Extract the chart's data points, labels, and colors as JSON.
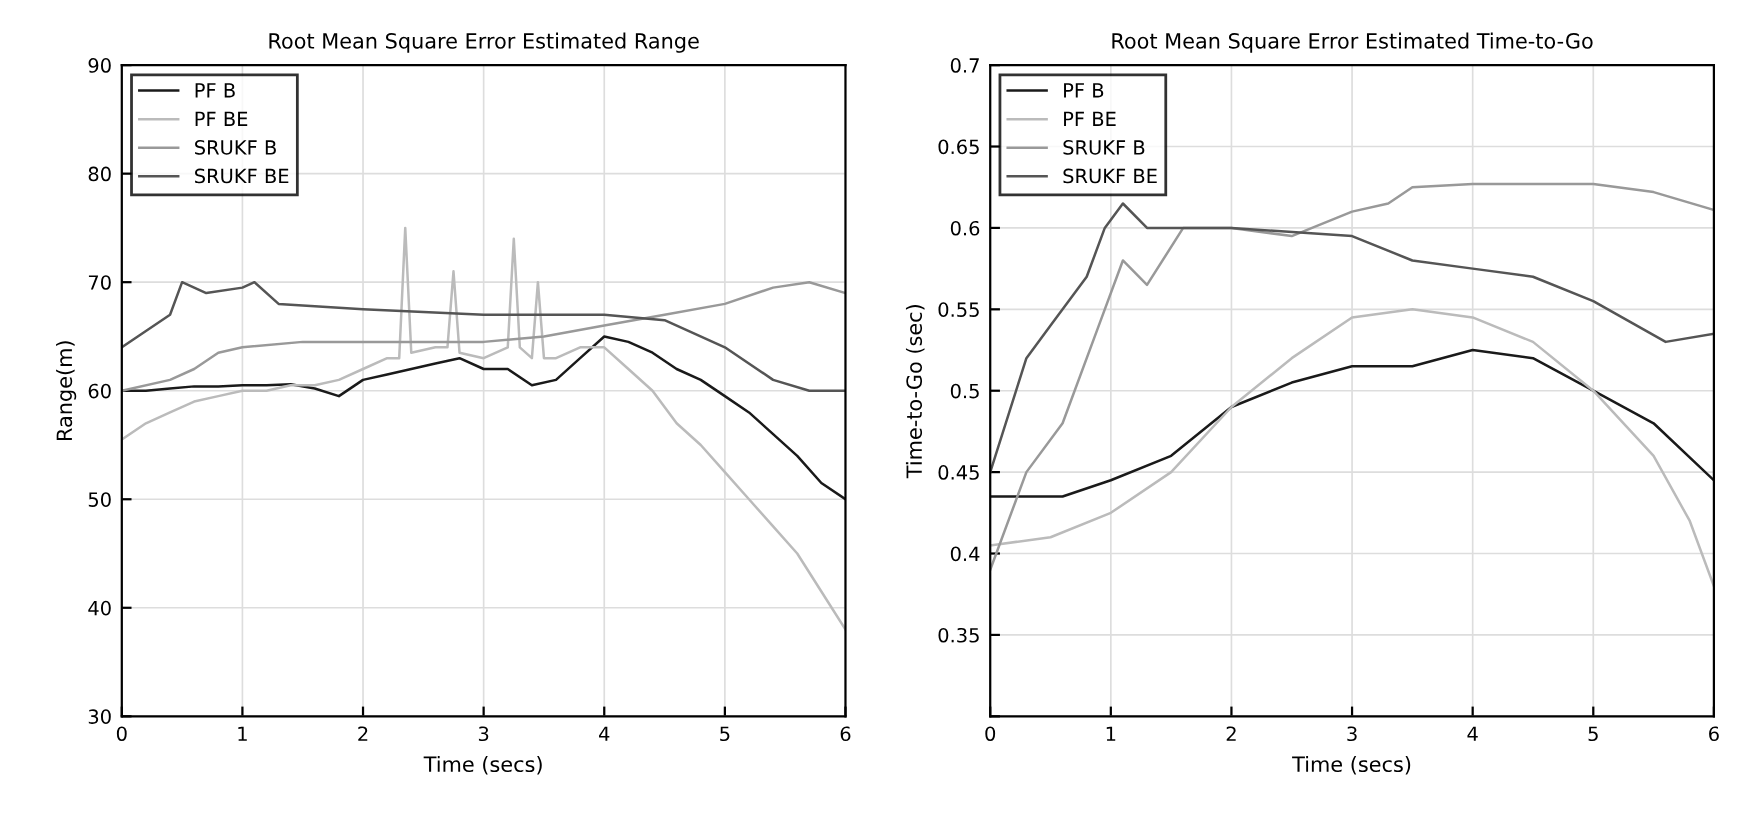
{
  "chart_data": [
    {
      "type": "line",
      "title": "Root Mean Square Error Estimated Range",
      "xlabel": "Time (secs)",
      "ylabel": "Range(m)",
      "xlim": [
        0,
        6
      ],
      "xticks": [
        0,
        1,
        2,
        3,
        4,
        5,
        6
      ],
      "ylim": [
        30,
        90
      ],
      "yticks": [
        30,
        40,
        50,
        60,
        70,
        80,
        90
      ],
      "grid": true,
      "legend": "top left",
      "series": [
        {
          "name": "PF B",
          "color": "#1a1a1a",
          "x": [
            0,
            0.2,
            0.4,
            0.6,
            0.8,
            1.0,
            1.2,
            1.4,
            1.6,
            1.8,
            2.0,
            2.2,
            2.4,
            2.6,
            2.8,
            3.0,
            3.2,
            3.4,
            3.6,
            3.8,
            4.0,
            4.2,
            4.4,
            4.6,
            4.8,
            5.0,
            5.2,
            5.4,
            5.6,
            5.8,
            6.0
          ],
          "values": [
            60,
            60,
            60.2,
            60.4,
            60.4,
            60.5,
            60.5,
            60.6,
            60.2,
            59.5,
            61,
            61.5,
            62,
            62.5,
            63,
            62,
            62,
            60.5,
            61,
            63,
            65,
            64.5,
            63.5,
            62,
            61,
            59.5,
            58,
            56,
            54,
            51.5,
            50
          ]
        },
        {
          "name": "PF BE",
          "color": "#bbbbbb",
          "x": [
            0,
            0.2,
            0.4,
            0.6,
            0.8,
            1.0,
            1.2,
            1.4,
            1.6,
            1.8,
            2.0,
            2.2,
            2.3,
            2.35,
            2.4,
            2.6,
            2.7,
            2.75,
            2.8,
            3.0,
            3.2,
            3.25,
            3.3,
            3.4,
            3.45,
            3.5,
            3.6,
            3.8,
            4.0,
            4.2,
            4.4,
            4.6,
            4.8,
            5.0,
            5.2,
            5.4,
            5.6,
            5.8,
            6.0
          ],
          "values": [
            55.5,
            57,
            58,
            59,
            59.5,
            60,
            60,
            60.5,
            60.5,
            61,
            62,
            63,
            63,
            75,
            63.5,
            64,
            64,
            71,
            63.5,
            63,
            64,
            74,
            64,
            63,
            70,
            63,
            63,
            64,
            64,
            62,
            60,
            57,
            55,
            52.5,
            50,
            47.5,
            45,
            41.5,
            38
          ]
        },
        {
          "name": "SRUKF B",
          "color": "#999999",
          "x": [
            0,
            0.4,
            0.6,
            0.8,
            1.0,
            1.5,
            2.0,
            3.0,
            3.5,
            4.0,
            4.5,
            5.0,
            5.4,
            5.7,
            6.0
          ],
          "values": [
            60,
            61,
            62,
            63.5,
            64,
            64.5,
            64.5,
            64.5,
            65,
            66,
            67,
            68,
            69.5,
            70,
            69
          ]
        },
        {
          "name": "SRUKF BE",
          "color": "#555555",
          "x": [
            0,
            0.2,
            0.4,
            0.5,
            0.7,
            1.0,
            1.1,
            1.3,
            2.0,
            3.0,
            4.0,
            4.5,
            5.0,
            5.4,
            5.7,
            6.0
          ],
          "values": [
            64,
            65.5,
            67,
            70,
            69,
            69.5,
            70,
            68,
            67.5,
            67,
            67,
            66.5,
            64,
            61,
            60,
            60
          ]
        }
      ]
    },
    {
      "type": "line",
      "title": "Root Mean Square Error Estimated Time-to-Go",
      "xlabel": "Time (secs)",
      "ylabel": "Time-to-Go (sec)",
      "xlim": [
        0,
        6
      ],
      "xticks": [
        0,
        1,
        2,
        3,
        4,
        5,
        6
      ],
      "ylim": [
        0.3,
        0.7
      ],
      "yticks": [
        {
          "value": 0.3,
          "label": null
        },
        0.35,
        0.4,
        0.45,
        0.5,
        0.55,
        0.6,
        0.65,
        0.7
      ],
      "grid": true,
      "legend": "top left",
      "series": [
        {
          "name": "PF B",
          "color": "#1a1a1a",
          "x": [
            0,
            0.3,
            0.6,
            1.0,
            1.5,
            2.0,
            2.5,
            3.0,
            3.5,
            4.0,
            4.5,
            5.0,
            5.5,
            6.0
          ],
          "values": [
            0.435,
            0.435,
            0.435,
            0.445,
            0.46,
            0.49,
            0.505,
            0.515,
            0.515,
            0.525,
            0.52,
            0.5,
            0.48,
            0.445
          ]
        },
        {
          "name": "PF BE",
          "color": "#bbbbbb",
          "x": [
            0,
            0.5,
            1.0,
            1.5,
            2.0,
            2.5,
            3.0,
            3.5,
            4.0,
            4.5,
            5.0,
            5.5,
            5.8,
            6.0
          ],
          "values": [
            0.405,
            0.41,
            0.425,
            0.45,
            0.49,
            0.52,
            0.545,
            0.55,
            0.545,
            0.53,
            0.5,
            0.46,
            0.42,
            0.38
          ]
        },
        {
          "name": "SRUKF B",
          "color": "#999999",
          "x": [
            0,
            0.3,
            0.6,
            0.9,
            1.1,
            1.3,
            1.6,
            2.0,
            2.5,
            3.0,
            3.3,
            3.5,
            4.0,
            5.0,
            5.5,
            6.0
          ],
          "values": [
            0.39,
            0.45,
            0.48,
            0.54,
            0.58,
            0.565,
            0.6,
            0.6,
            0.595,
            0.61,
            0.615,
            0.625,
            0.627,
            0.627,
            0.622,
            0.611
          ]
        },
        {
          "name": "SRUKF BE",
          "color": "#555555",
          "x": [
            0,
            0.3,
            0.5,
            0.8,
            0.95,
            1.1,
            1.3,
            2.0,
            3.0,
            3.5,
            4.0,
            4.5,
            5.0,
            5.6,
            6.0
          ],
          "values": [
            0.45,
            0.52,
            0.54,
            0.57,
            0.6,
            0.615,
            0.6,
            0.6,
            0.595,
            0.58,
            0.575,
            0.57,
            0.555,
            0.53,
            0.535
          ]
        }
      ]
    }
  ]
}
